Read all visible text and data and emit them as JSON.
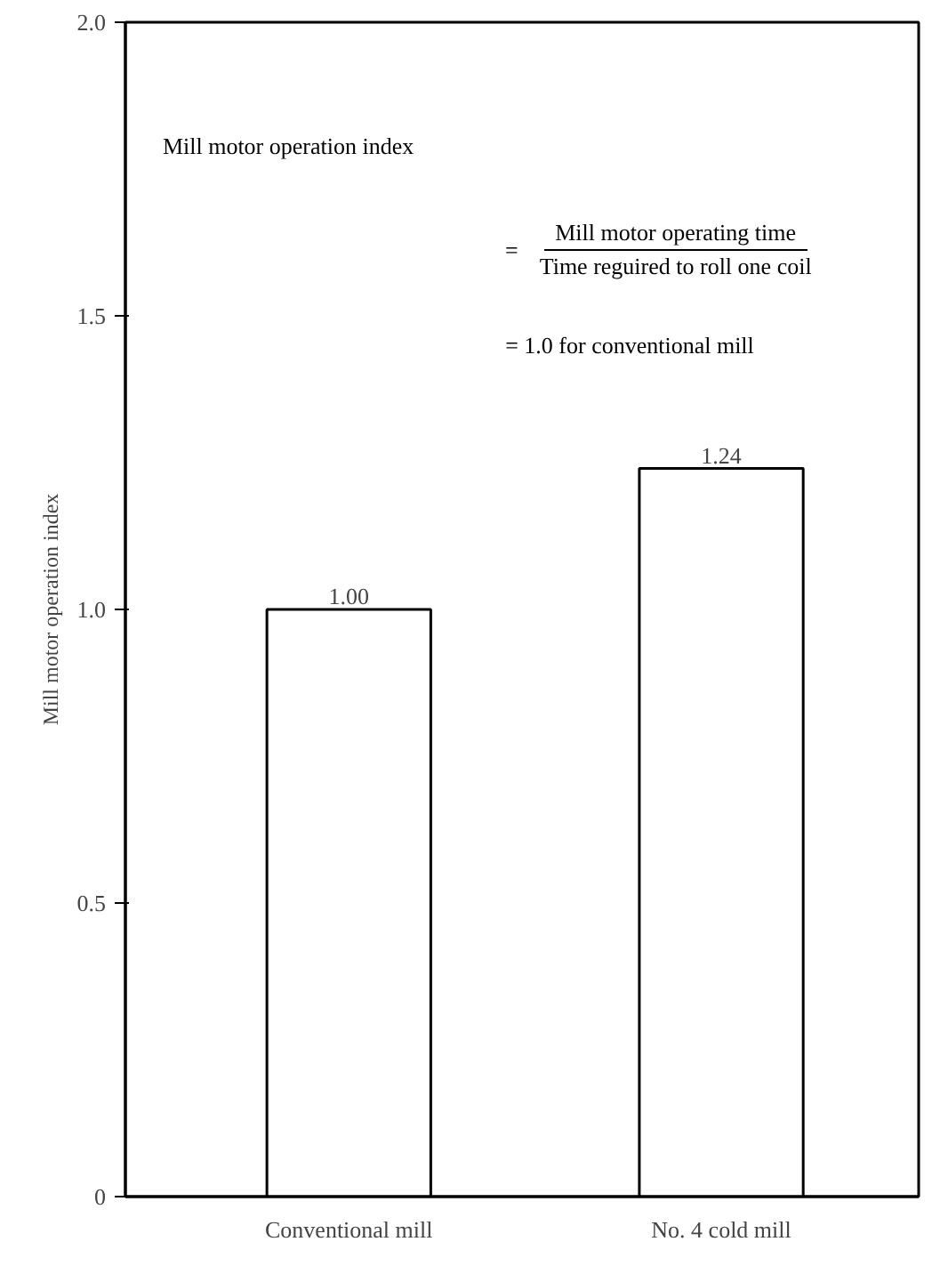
{
  "chart_data": {
    "type": "bar",
    "ylabel": "Mill motor operation index",
    "categories": [
      "Conventional mill",
      "No. 4 cold mill"
    ],
    "values": [
      1.0,
      1.24
    ],
    "color": "#ffffff",
    "value_labels": [
      "1.00",
      "1.24"
    ],
    "ylim": [
      0,
      2.0
    ],
    "yticks": [
      {
        "value": 0,
        "label": "0"
      },
      {
        "value": 0.5,
        "label": "0.5"
      },
      {
        "value": 1.0,
        "label": "1.0"
      },
      {
        "value": 1.5,
        "label": "1.5"
      },
      {
        "value": 2.0,
        "label": "2.0"
      }
    ],
    "grid": false,
    "annotations": [
      "Mill motor operation index",
      "=",
      "Mill motor operating time",
      "Time reguired to roll one coil",
      "= 1.0 for conventional mill"
    ]
  }
}
